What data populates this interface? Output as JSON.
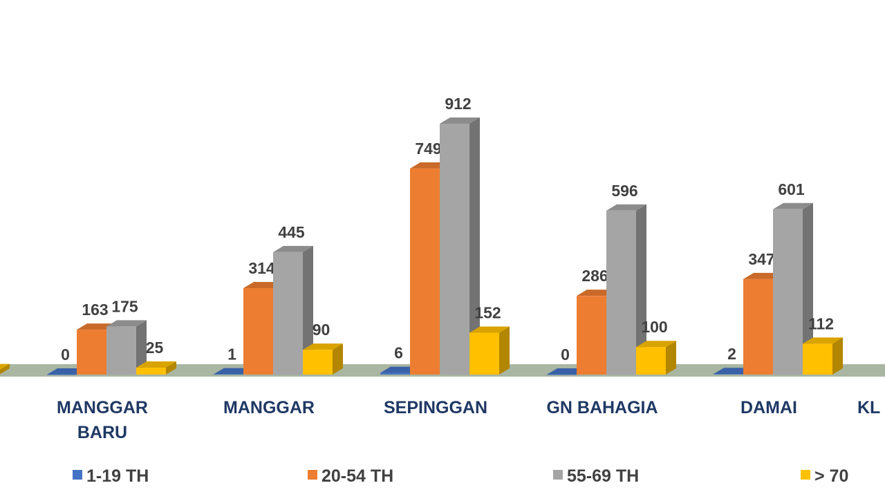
{
  "chart_data": {
    "type": "bar",
    "style": "3d-clustered-column",
    "categories": [
      "",
      "MANGGAR BARU",
      "MANGGAR",
      "SEPINGGAN",
      "GN BAHAGIA",
      "DAMAI",
      "KL"
    ],
    "category_lines": [
      [
        ""
      ],
      [
        "MANGGAR",
        "BARU"
      ],
      [
        "MANGGAR"
      ],
      [
        "SEPINGGAN"
      ],
      [
        "GN BAHAGIA"
      ],
      [
        "DAMAI"
      ],
      [
        "KL"
      ]
    ],
    "series": [
      {
        "name": "1-19 TH",
        "color": "#4472c4",
        "values": [
          null,
          0,
          1,
          6,
          0,
          2,
          null
        ]
      },
      {
        "name": "20-54 TH",
        "color": "#ed7d31",
        "values": [
          null,
          163,
          314,
          749,
          286,
          347,
          null
        ]
      },
      {
        "name": "55-69 TH",
        "color": "#a5a5a5",
        "values": [
          null,
          175,
          445,
          912,
          596,
          601,
          null
        ]
      },
      {
        "name": "> 70",
        "color": "#ffc000",
        "values": [
          16,
          25,
          90,
          152,
          100,
          112,
          null
        ]
      }
    ],
    "ylim": [
      0,
      1000
    ],
    "grid": false,
    "legend_position": "bottom",
    "floor_color": "#a9b6a2"
  }
}
